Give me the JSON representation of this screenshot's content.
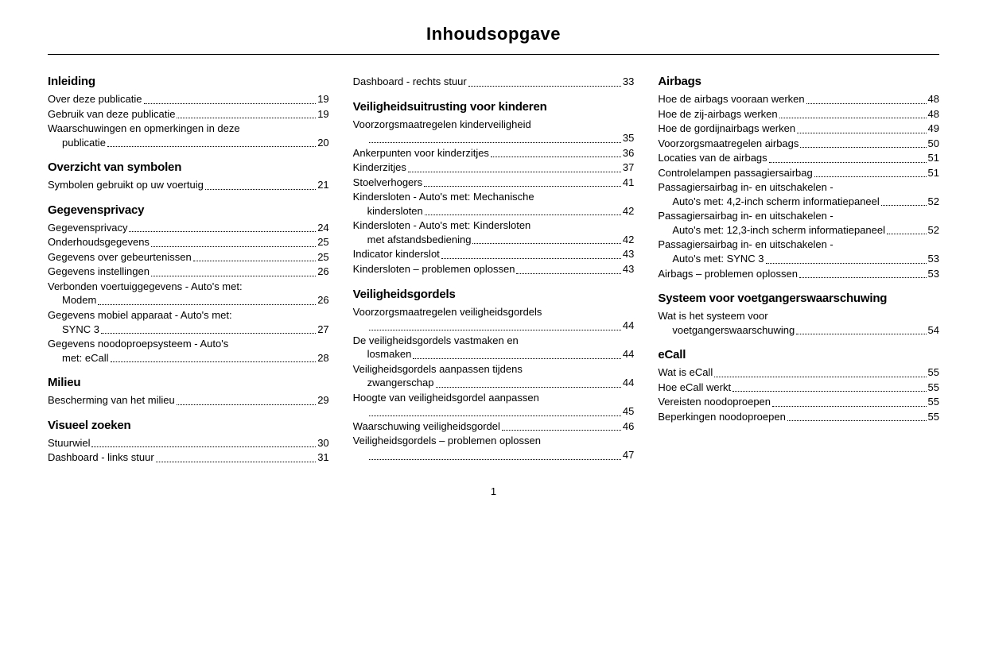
{
  "title": "Inhoudsopgave",
  "page_number": "1",
  "col1": {
    "sections": [
      {
        "heading": "Inleiding",
        "entries": [
          {
            "label": "Over deze publicatie",
            "page": "19"
          },
          {
            "label": "Gebruik van deze publicatie",
            "page": "19"
          },
          {
            "label": "Waarschuwingen en opmerkingen in deze",
            "sub": "publicatie",
            "page": "20"
          }
        ]
      },
      {
        "heading": "Overzicht van symbolen",
        "entries": [
          {
            "label": "Symbolen gebruikt op uw voertuig",
            "page": "21"
          }
        ]
      },
      {
        "heading": "Gegevensprivacy",
        "entries": [
          {
            "label": "Gegevensprivacy",
            "page": "24"
          },
          {
            "label": "Onderhoudsgegevens",
            "page": "25"
          },
          {
            "label": "Gegevens over gebeurtenissen",
            "page": "25"
          },
          {
            "label": "Gegevens instellingen",
            "page": "26"
          },
          {
            "label": "Verbonden voertuiggegevens - Auto's met:",
            "sub": "Modem",
            "page": "26"
          },
          {
            "label": "Gegevens mobiel apparaat - Auto's met:",
            "sub": "SYNC 3",
            "page": "27"
          },
          {
            "label": "Gegevens noodoproepsysteem - Auto's",
            "sub": "met: eCall",
            "page": "28"
          }
        ]
      },
      {
        "heading": "Milieu",
        "entries": [
          {
            "label": "Bescherming van het milieu",
            "page": "29"
          }
        ]
      },
      {
        "heading": "Visueel zoeken",
        "entries": [
          {
            "label": "Stuurwiel",
            "page": "30"
          },
          {
            "label": "Dashboard - links stuur",
            "page": "31"
          }
        ]
      }
    ]
  },
  "col2": {
    "pre_entries": [
      {
        "label": "Dashboard - rechts stuur",
        "page": "33"
      }
    ],
    "sections": [
      {
        "heading": "Veiligheidsuitrusting voor kinderen",
        "entries": [
          {
            "label": "Voorzorgsmaatregelen kinderveiligheid",
            "sub": "",
            "page": "35"
          },
          {
            "label": "Ankerpunten voor kinderzitjes",
            "page": "36"
          },
          {
            "label": "Kinderzitjes",
            "page": "37"
          },
          {
            "label": "Stoelverhogers",
            "page": "41"
          },
          {
            "label": "Kindersloten - Auto's met: Mechanische",
            "sub": "kindersloten",
            "page": "42"
          },
          {
            "label": "Kindersloten - Auto's met: Kindersloten",
            "sub": "met afstandsbediening",
            "page": "42"
          },
          {
            "label": "Indicator kinderslot",
            "page": "43"
          },
          {
            "label": "Kindersloten – problemen oplossen",
            "page": "43"
          }
        ]
      },
      {
        "heading": "Veiligheidsgordels",
        "entries": [
          {
            "label": "Voorzorgsmaatregelen veiligheidsgordels",
            "sub": "",
            "page": "44"
          },
          {
            "label": "De veiligheidsgordels vastmaken en",
            "sub": "losmaken",
            "page": "44"
          },
          {
            "label": "Veiligheidsgordels aanpassen tijdens",
            "sub": "zwangerschap",
            "page": "44"
          },
          {
            "label": "Hoogte van veiligheidsgordel aanpassen",
            "sub": "",
            "page": "45"
          },
          {
            "label": "Waarschuwing veiligheidsgordel",
            "page": "46"
          },
          {
            "label": "Veiligheidsgordels – problemen oplossen",
            "sub": "",
            "page": "47"
          }
        ]
      }
    ]
  },
  "col3": {
    "sections": [
      {
        "heading": "Airbags",
        "entries": [
          {
            "label": "Hoe de airbags vooraan werken",
            "page": "48"
          },
          {
            "label": "Hoe de zij-airbags werken",
            "page": "48"
          },
          {
            "label": "Hoe de gordijnairbags werken",
            "page": "49"
          },
          {
            "label": "Voorzorgsmaatregelen airbags",
            "page": "50"
          },
          {
            "label": "Locaties van de airbags",
            "page": "51"
          },
          {
            "label": "Controlelampen passagiersairbag",
            "page": "51"
          },
          {
            "label": "Passagiersairbag in- en uitschakelen -",
            "sub": "Auto's met: 4,2-inch scherm informatiepaneel",
            "page": "52"
          },
          {
            "label": "Passagiersairbag in- en uitschakelen -",
            "sub": "Auto's met: 12,3-inch scherm informatiepaneel",
            "page": "52"
          },
          {
            "label": "Passagiersairbag in- en uitschakelen -",
            "sub": "Auto's met: SYNC 3",
            "page": "53"
          },
          {
            "label": "Airbags – problemen oplossen",
            "page": "53"
          }
        ]
      },
      {
        "heading": "Systeem voor voetgangerswaar­schuwing",
        "entries": [
          {
            "label": "Wat is het systeem voor",
            "sub": "voetgangerswaarschuwing",
            "page": "54"
          }
        ]
      },
      {
        "heading": "eCall",
        "entries": [
          {
            "label": "Wat is eCall",
            "page": "55"
          },
          {
            "label": "Hoe eCall werkt",
            "page": "55"
          },
          {
            "label": "Vereisten noodoproepen",
            "page": "55"
          },
          {
            "label": "Beperkingen noodoproepen",
            "page": "55"
          }
        ]
      }
    ]
  }
}
